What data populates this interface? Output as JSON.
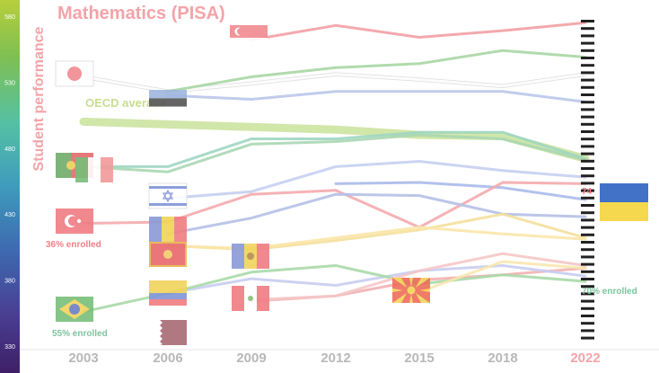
{
  "chart_data": {
    "type": "line",
    "title": "Mathematics (PISA)",
    "ylabel": "Student performance",
    "x": [
      "2003",
      "2006",
      "2009",
      "2012",
      "2015",
      "2018",
      "2022"
    ],
    "highlight_x": "2022",
    "yticks": [
      580,
      530,
      480,
      430,
      380,
      330
    ],
    "ylim": [
      330,
      580
    ],
    "grid": false,
    "series": [
      {
        "values": [
          null,
          null,
          562,
          573,
          564,
          569,
          575
        ],
        "color": "#f2a0a4",
        "flag": "singapore"
      },
      {
        "values": [
          534,
          523,
          529,
          536,
          532,
          527,
          536
        ],
        "color": "#ffffff",
        "flag": "japan"
      },
      {
        "values": [
          null,
          523,
          534,
          541,
          544,
          554,
          549
        ],
        "color": "#a9d6a3"
      },
      {
        "values": [
          null,
          520,
          517,
          523,
          523,
          523,
          515
        ],
        "color": "#b9c6ea",
        "flag": "estonia"
      },
      {
        "values": [
          500,
          498,
          496,
          494,
          490,
          489,
          472
        ],
        "color": "#cce3a0",
        "label": "OECD average",
        "width": 9
      },
      {
        "values": [
          466,
          466,
          487,
          487,
          492,
          492,
          472
        ],
        "color": "#9fd6c1",
        "flag": "portugal"
      },
      {
        "values": [
          466,
          462,
          483,
          485,
          490,
          487,
          471
        ],
        "color": "#a8d7b3",
        "flag": "italy"
      },
      {
        "values": [
          null,
          null,
          null,
          453,
          454,
          450,
          441
        ],
        "color": "#a8baeb"
      },
      {
        "values": [
          null,
          442,
          447,
          466,
          470,
          463,
          458
        ],
        "color": "#c5cff0",
        "flag": "israel"
      },
      {
        "values": [
          423,
          424,
          445,
          448,
          420,
          454,
          453
        ],
        "color": "#f4aaad",
        "flag": "turkey"
      },
      {
        "values": [
          null,
          415,
          427,
          445,
          444,
          430,
          428
        ],
        "color": "#b4c0e6",
        "flag": "romania"
      },
      {
        "values": [
          null,
          406,
          403,
          410,
          418,
          430,
          412
        ],
        "color": "#f4e09c",
        "flag": "montenegro"
      },
      {
        "values": [
          null,
          406,
          404,
          412,
          420,
          415,
          411
        ],
        "color": "#fbe6a8",
        "flag": "moldova"
      },
      {
        "values": [
          null,
          null,
          364,
          368,
          380,
          384,
          389
        ],
        "color": "#f2b1b3",
        "flag": "qatar"
      },
      {
        "values": [
          null,
          370,
          381,
          376,
          387,
          391,
          383
        ],
        "color": "#c8cdef",
        "flag": "colombia"
      },
      {
        "values": [
          356,
          370,
          386,
          391,
          377,
          384,
          379
        ],
        "color": "#a9d9a9",
        "flag": "brazil"
      },
      {
        "values": [
          null,
          null,
          365,
          368,
          387,
          400,
          391
        ],
        "color": "#f5c6c6",
        "flag": "peru"
      },
      {
        "values": [
          null,
          null,
          null,
          null,
          371,
          394,
          389
        ],
        "color": "#f8e7ae",
        "flag": "north-macedonia"
      }
    ],
    "annotations": [
      {
        "text": "36% enrolled",
        "color": "#f07f86"
      },
      {
        "text": "55% enrolled",
        "color": "#7cc39d"
      },
      {
        "text": "70% enrolled",
        "color": "#7cc39d"
      },
      {
        "text": "74",
        "color": "#f07f86"
      }
    ],
    "current_flag": "ukraine"
  }
}
